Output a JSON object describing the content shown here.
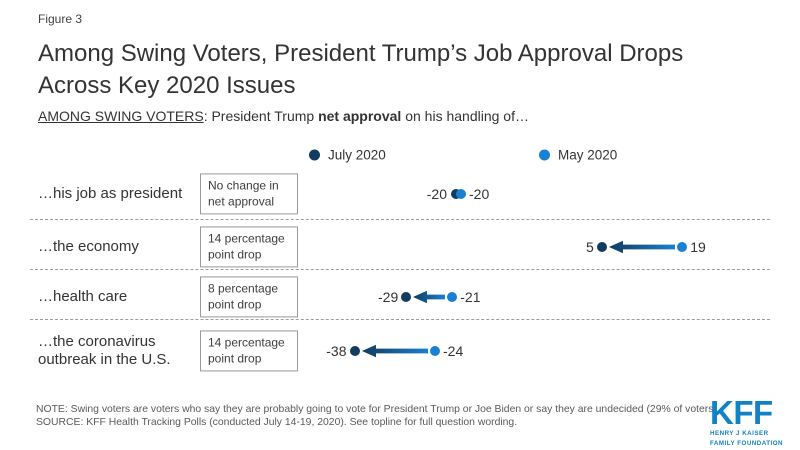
{
  "figure_label": "Figure 3",
  "title": "Among Swing Voters, President Trump’s Job Approval Drops Across Key 2020 Issues",
  "subtitle": {
    "underlined": "AMONG SWING VOTERS",
    "middle": ": President Trump ",
    "bold": "net approval",
    "suffix": " on his handling of…"
  },
  "chart_data": {
    "type": "dumbbell",
    "series": [
      {
        "name": "July 2020",
        "color": "#123b5e"
      },
      {
        "name": "May 2020",
        "color": "#1a80d2"
      }
    ],
    "rows": [
      {
        "label": "…his job as president",
        "annotation": "No change in net approval",
        "july_2020": -20,
        "may_2020": -20,
        "change": 0
      },
      {
        "label": "…the economy",
        "annotation": "14 percentage point drop",
        "july_2020": 5,
        "may_2020": 19,
        "change": -14
      },
      {
        "label": "…health care",
        "annotation": "8 percentage point drop",
        "july_2020": -29,
        "may_2020": -21,
        "change": -8
      },
      {
        "label": "…the coronavirus outbreak in the U.S.",
        "annotation": "14 percentage point drop",
        "july_2020": -38,
        "may_2020": -24,
        "change": -14
      }
    ],
    "legend_position": "top",
    "arrow_meaning": "drop from May 2020 to July 2020"
  },
  "footer": {
    "note": "NOTE: Swing voters are voters who say they are probably going to vote for President Trump or Joe Biden or say they are undecided (29% of voters).",
    "source": "SOURCE: KFF Health Tracking Polls (conducted July 14-19, 2020). See topline for full question wording."
  },
  "logo": {
    "text": "KFF",
    "tagline_line1": "HENRY J KAISER",
    "tagline_line2": "FAMILY FOUNDATION",
    "color": "#1182c4"
  },
  "colors": {
    "july_dot": "#123b5e",
    "may_dot": "#1a80d2",
    "separator": "#9c9c9c"
  }
}
